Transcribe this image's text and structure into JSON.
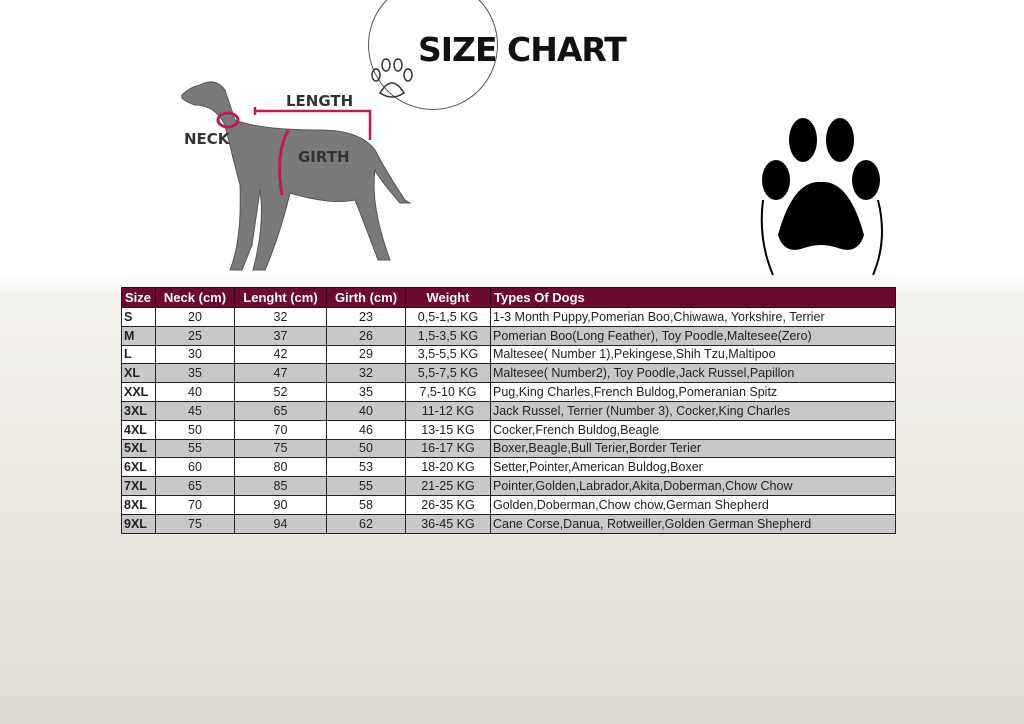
{
  "title": "SIZE CHART",
  "diagram_labels": {
    "neck": "NECK",
    "length": "LENGTH",
    "girth": "GIRTH"
  },
  "colors": {
    "header": "#6b0a2e",
    "measure_lines": "#c2185b"
  },
  "table": {
    "headers": [
      "Size",
      "Neck (cm)",
      "Lenght (cm)",
      "Girth (cm)",
      "Weight",
      "Types Of Dogs"
    ],
    "rows": [
      [
        "S",
        "20",
        "32",
        "23",
        "0,5-1,5 KG",
        "1-3 Month Puppy,Pomerian Boo,Chiwawa, Yorkshire, Terrier"
      ],
      [
        "M",
        "25",
        "37",
        "26",
        "1,5-3,5 KG",
        "Pomerian Boo(Long Feather), Toy Poodle,Maltesee(Zero)"
      ],
      [
        "L",
        "30",
        "42",
        "29",
        "3,5-5,5 KG",
        "Maltesee( Number 1),Pekingese,Shih Tzu,Maltipoo"
      ],
      [
        "XL",
        "35",
        "47",
        "32",
        "5,5-7,5 KG",
        "Maltesee( Number2), Toy Poodle,Jack Russel,Papillon"
      ],
      [
        "XXL",
        "40",
        "52",
        "35",
        "7,5-10 KG",
        "Pug,King Charles,French Buldog,Pomeranian Spitz"
      ],
      [
        "3XL",
        "45",
        "65",
        "40",
        "11-12 KG",
        "Jack Russel, Terrier (Number 3), Cocker,King Charles"
      ],
      [
        "4XL",
        "50",
        "70",
        "46",
        "13-15 KG",
        "Cocker,French Buldog,Beagle"
      ],
      [
        "5XL",
        "55",
        "75",
        "50",
        "16-17 KG",
        "Boxer,Beagle,Bull Terier,Border Terier"
      ],
      [
        "6XL",
        "60",
        "80",
        "53",
        "18-20 KG",
        "Setter,Pointer,American Buldog,Boxer"
      ],
      [
        "7XL",
        "65",
        "85",
        "55",
        "21-25 KG",
        "Pointer,Golden,Labrador,Akita,Doberman,Chow Chow"
      ],
      [
        "8XL",
        "70",
        "90",
        "58",
        "26-35 KG",
        "Golden,Doberman,Chow chow,German Shepherd"
      ],
      [
        "9XL",
        "75",
        "94",
        "62",
        "36-45 KG",
        "Cane Corse,Danua, Rotweiller,Golden German Shepherd"
      ]
    ]
  }
}
